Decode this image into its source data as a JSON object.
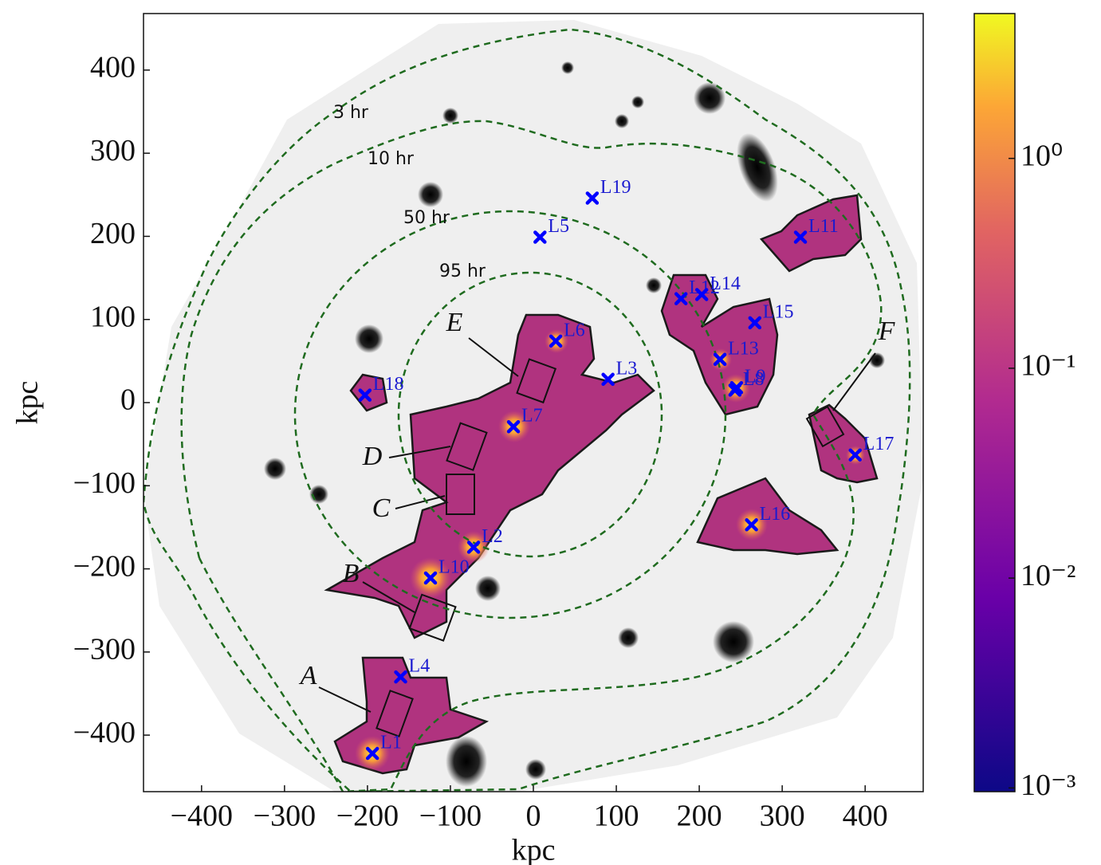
{
  "chart_data": {
    "type": "scatter",
    "xlabel": "kpc",
    "ylabel": "kpc",
    "xlim": [
      -470,
      470
    ],
    "ylim": [
      -468,
      468
    ],
    "xticks": [
      {
        "value": -400,
        "label": "−400"
      },
      {
        "value": -300,
        "label": "−300"
      },
      {
        "value": -200,
        "label": "−200"
      },
      {
        "value": -100,
        "label": "−100"
      },
      0,
      100,
      200,
      300,
      400
    ],
    "yticks": [
      {
        "value": -400,
        "label": "−400"
      },
      {
        "value": -300,
        "label": "−300"
      },
      {
        "value": -200,
        "label": "−200"
      },
      {
        "value": -100,
        "label": "−100"
      },
      0,
      100,
      200,
      300,
      400
    ],
    "points": {
      "color": "#0000ff",
      "labels": [
        "L1",
        "L2",
        "L3",
        "L4",
        "L5",
        "L6",
        "L7",
        "L8",
        "L9",
        "L10",
        "L11",
        "L12",
        "L13",
        "L14",
        "L15",
        "L16",
        "L17",
        "L18",
        "L19"
      ],
      "x": [
        -194,
        -72,
        90,
        -160,
        8,
        27,
        -24,
        243,
        245,
        -124,
        322,
        178,
        225,
        203,
        267,
        263,
        388,
        -203,
        71
      ],
      "y": [
        -422,
        -174,
        28,
        -330,
        199,
        74,
        -29,
        15,
        18,
        -211,
        199,
        125,
        52,
        130,
        96,
        -147,
        -63,
        9,
        246
      ]
    },
    "contour_labels": [
      "3 hr",
      "10 hr",
      "50 hr",
      "95 hr"
    ],
    "annotations": [
      "A",
      "B",
      "C",
      "D",
      "E",
      "F"
    ],
    "colorbar": {
      "scale": "log",
      "lim": [
        0.00096,
        4.9
      ],
      "ticks": [
        {
          "value": 0.001,
          "label": "10⁻³"
        },
        {
          "value": 0.01,
          "label": "10⁻²"
        },
        {
          "value": 0.1,
          "label": "10⁻¹"
        },
        {
          "value": 1,
          "label": "10⁰"
        }
      ]
    }
  }
}
